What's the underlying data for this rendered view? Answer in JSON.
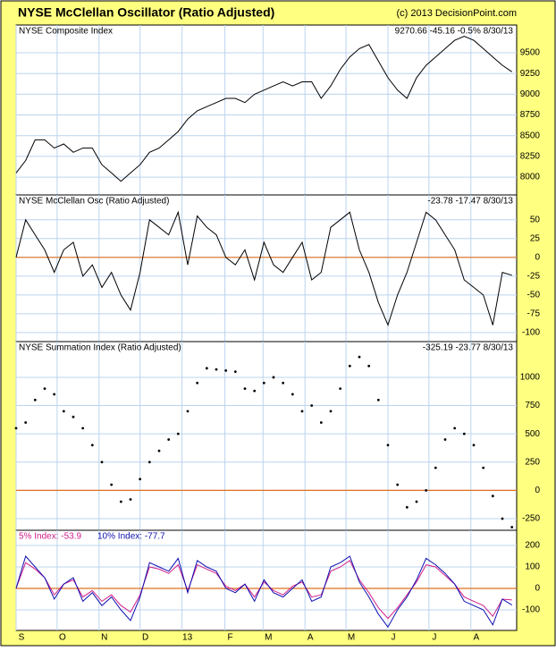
{
  "title": "NYSE McClellan Oscillator (Ratio Adjusted)",
  "source": "(c) 2013 DecisionPoint.com",
  "chart_data": [
    {
      "type": "line",
      "label": "NYSE Composite Index",
      "stats": "9270.66 -45.16 -0.5% 8/30/13",
      "color": "#000000",
      "values": [
        8050,
        8200,
        8450,
        8450,
        8350,
        8400,
        8300,
        8350,
        8350,
        8150,
        8050,
        7950,
        8050,
        8150,
        8300,
        8350,
        8450,
        8550,
        8700,
        8800,
        8850,
        8900,
        8950,
        8950,
        8900,
        9000,
        9050,
        9100,
        9150,
        9100,
        9150,
        9150,
        8950,
        9100,
        9300,
        9450,
        9550,
        9600,
        9400,
        9200,
        9050,
        8950,
        9200,
        9350,
        9450,
        9550,
        9650,
        9700,
        9650,
        9550,
        9450,
        9350,
        9270.66
      ],
      "ylim": [
        7785,
        9835
      ],
      "yticks": [
        8000,
        8250,
        8500,
        8750,
        9000,
        9250,
        9500
      ],
      "grid": true
    },
    {
      "type": "line",
      "label": "NYSE McClellan Osc (Ratio Adjusted)",
      "stats": "-23.78 -17.47 8/30/13",
      "color": "#000000",
      "reference_line": 0,
      "reference_color": "#e07020",
      "values": [
        0,
        50,
        30,
        10,
        -20,
        10,
        20,
        -25,
        -10,
        -40,
        -20,
        -50,
        -70,
        -20,
        50,
        40,
        30,
        60,
        -10,
        55,
        40,
        30,
        0,
        -10,
        10,
        -30,
        20,
        -10,
        -20,
        0,
        20,
        -30,
        -20,
        40,
        50,
        60,
        10,
        -20,
        -60,
        -90,
        -50,
        -20,
        20,
        60,
        50,
        30,
        10,
        -30,
        -40,
        -50,
        -90,
        -20,
        -23.78
      ],
      "ylim": [
        -112,
        83
      ],
      "yticks": [
        -100,
        -75,
        -50,
        -25,
        0,
        25,
        50
      ],
      "grid": true
    },
    {
      "type": "dots",
      "label": "NYSE Summation Index (Ratio Adjusted)",
      "stats": "-325.19 -23.77 8/30/13",
      "color": "#000000",
      "reference_line": 0,
      "reference_color": "#e07020",
      "values": [
        550,
        600,
        800,
        900,
        850,
        700,
        650,
        550,
        400,
        250,
        50,
        -100,
        -80,
        100,
        250,
        350,
        450,
        500,
        700,
        950,
        1080,
        1070,
        1060,
        1050,
        900,
        880,
        950,
        1000,
        950,
        850,
        700,
        750,
        600,
        700,
        900,
        1100,
        1180,
        1100,
        800,
        400,
        50,
        -150,
        -100,
        0,
        200,
        450,
        550,
        500,
        400,
        200,
        -50,
        -250,
        -325.19
      ],
      "ylim": [
        -353,
        1316
      ],
      "yticks": [
        -250,
        0,
        250,
        500,
        750,
        1000
      ],
      "grid": true
    },
    {
      "type": "line",
      "reference_line": 0,
      "reference_color": "#e07020",
      "x": [
        0,
        1,
        2,
        3,
        4,
        5,
        6,
        7,
        8,
        9,
        10,
        11,
        12,
        13,
        14,
        15,
        16,
        17,
        18,
        19,
        20,
        21,
        22,
        23,
        24,
        25,
        26,
        27,
        28,
        29,
        30,
        31,
        32,
        33,
        34,
        35,
        36,
        37,
        38,
        39,
        40,
        41,
        42,
        43,
        44,
        45,
        46,
        47,
        48,
        49,
        50,
        51,
        52
      ],
      "xlim": [
        0,
        52.5
      ],
      "xticks": [
        {
          "value": 0,
          "label": "S"
        },
        {
          "value": 4.3,
          "label": "O"
        },
        {
          "value": 8.7,
          "label": "N"
        },
        {
          "value": 13,
          "label": "D"
        },
        {
          "value": 17.4,
          "label": "13"
        },
        {
          "value": 21.9,
          "label": "F"
        },
        {
          "value": 25.9,
          "label": "M"
        },
        {
          "value": 30.3,
          "label": "A"
        },
        {
          "value": 34.6,
          "label": "M"
        },
        {
          "value": 39,
          "label": "J"
        },
        {
          "value": 43.3,
          "label": "J"
        },
        {
          "value": 47.7,
          "label": "A"
        }
      ],
      "series": [
        {
          "name": "5% Index: -53.9",
          "color": "#d0208a",
          "values": [
            0,
            120,
            90,
            50,
            -30,
            20,
            40,
            -40,
            -10,
            -60,
            -30,
            -80,
            -110,
            -30,
            100,
            90,
            70,
            110,
            -10,
            110,
            90,
            70,
            10,
            -10,
            20,
            -40,
            30,
            -10,
            -30,
            10,
            30,
            -40,
            -30,
            80,
            100,
            130,
            40,
            -20,
            -90,
            -140,
            -90,
            -30,
            30,
            110,
            100,
            60,
            20,
            -40,
            -60,
            -80,
            -130,
            -50,
            -53.9
          ]
        },
        {
          "name": "10% Index: -77.7",
          "color": "#1010b0",
          "values": [
            0,
            150,
            100,
            50,
            -50,
            20,
            50,
            -60,
            -20,
            -80,
            -40,
            -100,
            -150,
            -40,
            120,
            100,
            80,
            140,
            -20,
            130,
            100,
            80,
            0,
            -20,
            20,
            -60,
            40,
            -20,
            -40,
            0,
            40,
            -60,
            -40,
            100,
            120,
            150,
            30,
            -40,
            -120,
            -180,
            -100,
            -40,
            40,
            140,
            110,
            70,
            20,
            -60,
            -80,
            -100,
            -170,
            -50,
            -77.7
          ]
        }
      ],
      "ylim": [
        -196,
        271
      ],
      "yticks": [
        -100,
        0,
        100,
        200
      ],
      "grid": true
    }
  ]
}
